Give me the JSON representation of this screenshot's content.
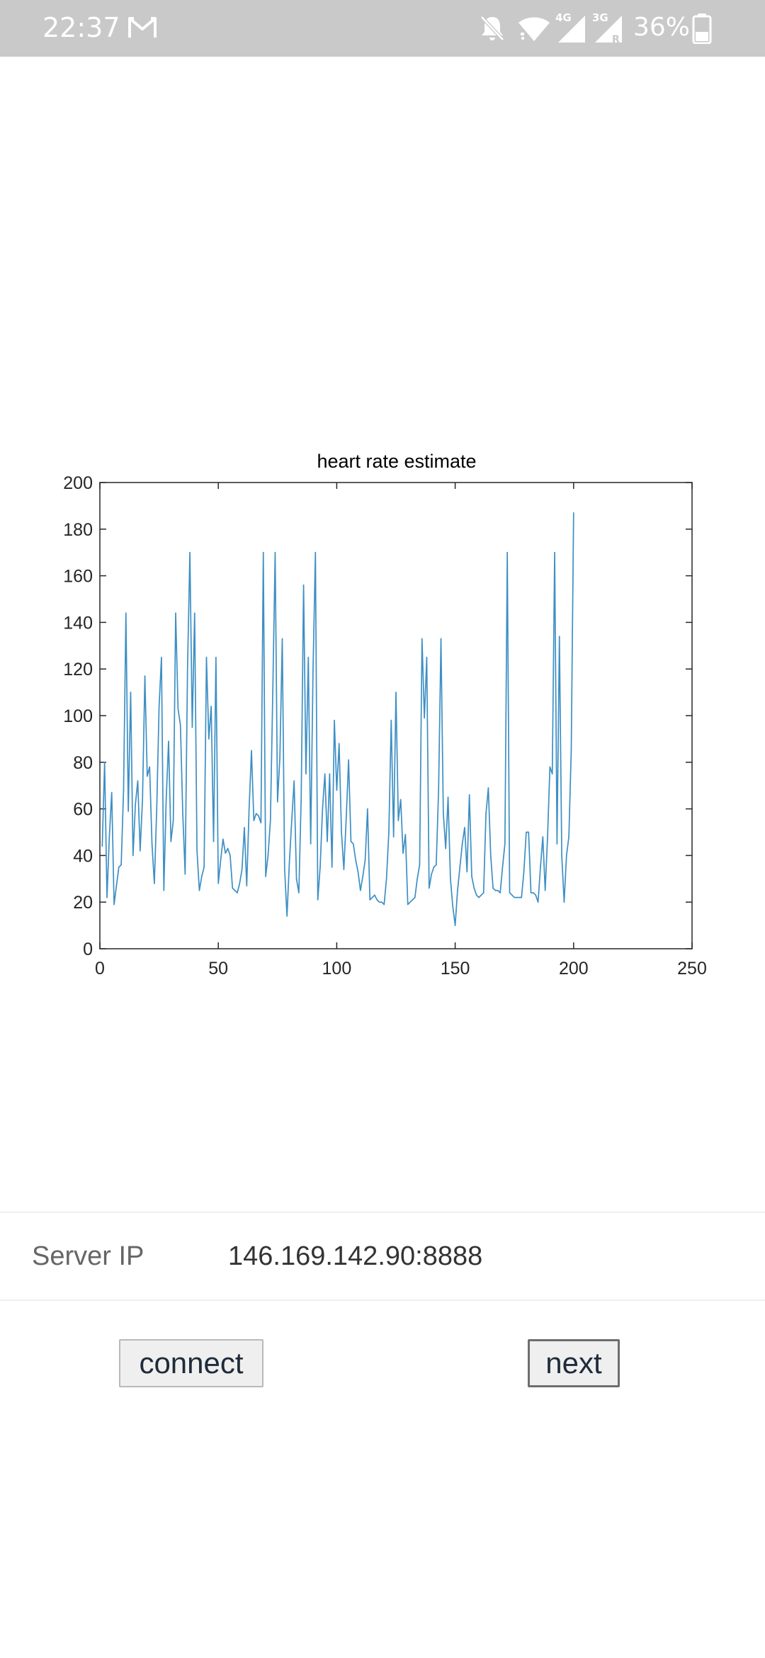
{
  "status_bar": {
    "time": "22:37",
    "battery_text": "36%",
    "icons": [
      "gmail-icon",
      "notifications-muted-icon",
      "wifi-icon",
      "signal-4g-icon",
      "signal-3g-roaming-icon",
      "battery-icon"
    ],
    "network_labels": {
      "first": "4G",
      "second": "3G",
      "roaming": "R"
    },
    "background_color": "#c9c9c9"
  },
  "chart_data": {
    "type": "line",
    "title": "heart rate estimate",
    "xlabel": "",
    "ylabel": "",
    "xlim": [
      0,
      250
    ],
    "ylim": [
      0,
      200
    ],
    "x_ticks": [
      0,
      50,
      100,
      150,
      200,
      250
    ],
    "y_ticks": [
      0,
      20,
      40,
      60,
      80,
      100,
      120,
      140,
      160,
      180,
      200
    ],
    "grid": false,
    "line_color": "#3d8fc4",
    "series": [
      {
        "values": [
          44,
          80,
          22,
          48,
          67,
          19,
          27,
          35,
          36,
          68,
          144,
          59,
          110,
          40,
          62,
          72,
          42,
          64,
          117,
          74,
          78,
          45,
          28,
          60,
          104,
          125,
          25,
          64,
          89,
          46,
          55,
          144,
          103,
          96,
          58,
          32,
          120,
          170,
          95,
          144,
          42,
          25,
          31,
          35,
          125,
          90,
          104,
          46,
          125,
          28,
          38,
          47,
          41,
          43,
          40,
          26,
          25,
          24,
          28,
          34,
          52,
          27,
          60,
          85,
          55,
          58,
          57,
          54,
          170,
          31,
          40,
          55,
          110,
          170,
          63,
          82,
          133,
          34,
          14,
          37,
          55,
          72,
          30,
          24,
          65,
          156,
          75,
          125,
          45,
          120,
          170,
          21,
          35,
          60,
          75,
          46,
          75,
          35,
          98,
          68,
          88,
          50,
          34,
          56,
          81,
          46,
          45,
          38,
          33,
          25,
          31,
          38,
          60,
          21,
          22,
          23,
          21,
          20,
          20,
          19,
          30,
          50,
          98,
          48,
          110,
          55,
          64,
          41,
          49,
          19,
          20,
          21,
          22,
          30,
          36,
          133,
          99,
          125,
          26,
          32,
          35,
          36,
          68,
          133,
          58,
          43,
          65,
          30,
          18,
          10,
          25,
          35,
          45,
          52,
          33,
          66,
          31,
          26,
          23,
          22,
          23,
          24,
          58,
          69,
          40,
          26,
          25,
          25,
          24,
          35,
          45,
          170,
          24,
          23,
          22,
          22,
          22,
          22,
          33,
          50,
          50,
          24,
          24,
          23,
          20,
          35,
          48,
          25,
          48,
          78,
          75,
          170,
          45,
          134,
          40,
          20,
          40,
          48,
          85,
          187
        ]
      }
    ]
  },
  "form": {
    "server_label": "Server IP",
    "server_value": "146.169.142.90:8888"
  },
  "buttons": {
    "connect_label": "connect",
    "next_label": "next"
  }
}
